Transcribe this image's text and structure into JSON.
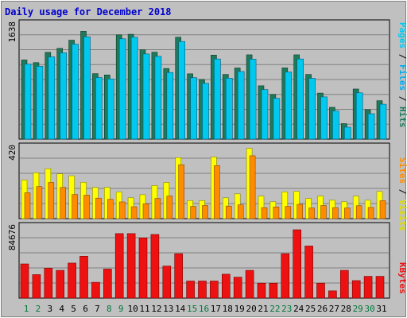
{
  "title": "Daily usage for December 2018",
  "colors": {
    "background": "#c0c0c0",
    "title": "#0000cc",
    "grid": "#808080",
    "pages": "#1e7a5a",
    "files": "#00c8ee",
    "hits": "#00aaaa",
    "visits": "#ffff00",
    "sites": "#ff8c00",
    "kbytes": "#ee1111",
    "weekday": "#000000",
    "weekend": "#007a3d"
  },
  "chart_data": [
    {
      "type": "bar",
      "name": "hits-files-pages",
      "categories": [
        "1",
        "2",
        "3",
        "4",
        "5",
        "6",
        "7",
        "8",
        "9",
        "10",
        "11",
        "12",
        "13",
        "14",
        "15",
        "16",
        "17",
        "18",
        "19",
        "20",
        "21",
        "22",
        "23",
        "24",
        "25",
        "26",
        "27",
        "28",
        "29",
        "30",
        "31"
      ],
      "ymax": 1638,
      "tick_label": "1638",
      "ylabel_parts": [
        "Pages",
        "Files",
        "Hits"
      ],
      "series": [
        {
          "name": "Pages",
          "values": [
            1125,
            1087,
            1233,
            1290,
            1406,
            1532,
            930,
            912,
            1482,
            1490,
            1269,
            1235,
            1004,
            1448,
            928,
            847,
            1194,
            919,
            1011,
            1198,
            758,
            635,
            1012,
            1198,
            919,
            654,
            452,
            220,
            712,
            418,
            546
          ]
        },
        {
          "name": "Files",
          "values": [
            1066,
            1035,
            1169,
            1227,
            1350,
            1453,
            875,
            855,
            1426,
            1447,
            1210,
            1176,
            947,
            1387,
            873,
            793,
            1139,
            866,
            961,
            1136,
            704,
            580,
            954,
            1139,
            864,
            600,
            400,
            170,
            658,
            361,
            496
          ]
        }
      ]
    },
    {
      "type": "bar",
      "name": "visits-sites",
      "categories": [
        "1",
        "2",
        "3",
        "4",
        "5",
        "6",
        "7",
        "8",
        "9",
        "10",
        "11",
        "12",
        "13",
        "14",
        "15",
        "16",
        "17",
        "18",
        "19",
        "20",
        "21",
        "22",
        "23",
        "24",
        "25",
        "26",
        "27",
        "28",
        "29",
        "30",
        "31"
      ],
      "ymax": 420,
      "tick_label": "420",
      "ylabel_parts": [
        "Sites",
        "Visits"
      ],
      "series": [
        {
          "name": "Visits",
          "values": [
            224,
            266,
            290,
            260,
            249,
            211,
            181,
            181,
            155,
            121,
            139,
            192,
            210,
            354,
            105,
            105,
            358,
            121,
            144,
            408,
            131,
            98,
            155,
            158,
            117,
            131,
            107,
            98,
            131,
            107,
            158
          ]
        },
        {
          "name": "Sites",
          "values": [
            150,
            186,
            210,
            181,
            140,
            136,
            119,
            112,
            97,
            69,
            86,
            117,
            131,
            313,
            71,
            76,
            308,
            73,
            80,
            365,
            64,
            68,
            71,
            83,
            62,
            76,
            64,
            62,
            75,
            65,
            104
          ]
        }
      ]
    },
    {
      "type": "bar",
      "name": "kbytes",
      "categories": [
        "1",
        "2",
        "3",
        "4",
        "5",
        "6",
        "7",
        "8",
        "9",
        "10",
        "11",
        "12",
        "13",
        "14",
        "15",
        "16",
        "17",
        "18",
        "19",
        "20",
        "21",
        "22",
        "23",
        "24",
        "25",
        "26",
        "27",
        "28",
        "29",
        "30",
        "31"
      ],
      "ymax": 84676,
      "tick_label": "84676",
      "ylabel_parts": [
        "KBytes"
      ],
      "series": [
        {
          "name": "KBytes",
          "values": [
            40000,
            27500,
            35000,
            32500,
            41000,
            49000,
            18500,
            34000,
            75500,
            75500,
            70500,
            74500,
            37500,
            52000,
            20000,
            20000,
            20000,
            28000,
            24500,
            32500,
            17500,
            17500,
            52000,
            80000,
            61000,
            17500,
            8500,
            32500,
            20500,
            25500,
            25500
          ]
        }
      ]
    }
  ],
  "days": [
    {
      "label": "1",
      "weekend": true
    },
    {
      "label": "2",
      "weekend": true
    },
    {
      "label": "3",
      "weekend": false
    },
    {
      "label": "4",
      "weekend": false
    },
    {
      "label": "5",
      "weekend": false
    },
    {
      "label": "6",
      "weekend": false
    },
    {
      "label": "7",
      "weekend": false
    },
    {
      "label": "8",
      "weekend": true
    },
    {
      "label": "9",
      "weekend": true
    },
    {
      "label": "10",
      "weekend": false
    },
    {
      "label": "11",
      "weekend": false
    },
    {
      "label": "12",
      "weekend": false
    },
    {
      "label": "13",
      "weekend": false
    },
    {
      "label": "14",
      "weekend": false
    },
    {
      "label": "15",
      "weekend": true
    },
    {
      "label": "16",
      "weekend": true
    },
    {
      "label": "17",
      "weekend": false
    },
    {
      "label": "18",
      "weekend": false
    },
    {
      "label": "19",
      "weekend": false
    },
    {
      "label": "20",
      "weekend": false
    },
    {
      "label": "21",
      "weekend": false
    },
    {
      "label": "22",
      "weekend": true
    },
    {
      "label": "23",
      "weekend": true
    },
    {
      "label": "24",
      "weekend": false
    },
    {
      "label": "25",
      "weekend": false
    },
    {
      "label": "26",
      "weekend": false
    },
    {
      "label": "27",
      "weekend": false
    },
    {
      "label": "28",
      "weekend": false
    },
    {
      "label": "29",
      "weekend": true
    },
    {
      "label": "30",
      "weekend": true
    },
    {
      "label": "31",
      "weekend": false
    }
  ]
}
